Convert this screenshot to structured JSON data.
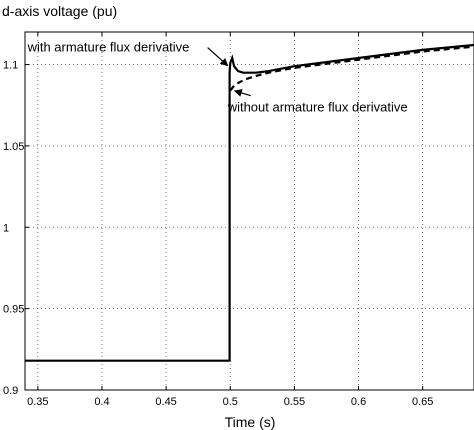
{
  "chart_data": {
    "type": "line",
    "title": "",
    "ylabel": "d-axis voltage (pu)",
    "xlabel": "Time (s)",
    "xlim": [
      0.34,
      0.69
    ],
    "ylim": [
      0.9,
      1.12
    ],
    "x_ticks": [
      0.35,
      0.4,
      0.45,
      0.5,
      0.55,
      0.6,
      0.65
    ],
    "x_tick_labels": [
      "0.35",
      "0.4",
      "0.45",
      "0.5",
      "0.55",
      "0.6",
      "0.65"
    ],
    "y_ticks": [
      0.9,
      0.95,
      1.0,
      1.05,
      1.1
    ],
    "y_tick_labels": [
      "0.9",
      "0.95",
      "1",
      "1.05",
      "1.1"
    ],
    "grid": true,
    "series": [
      {
        "name": "with armature flux derivative",
        "style": "solid",
        "color": "#000000",
        "x": [
          0.34,
          0.4995,
          0.4995,
          0.5,
          0.5015,
          0.503,
          0.506,
          0.51,
          0.515,
          0.52,
          0.53,
          0.55,
          0.6,
          0.65,
          0.69
        ],
        "y": [
          0.918,
          0.918,
          1.095,
          1.101,
          1.104,
          1.099,
          1.096,
          1.095,
          1.095,
          1.095,
          1.096,
          1.099,
          1.104,
          1.109,
          1.112
        ]
      },
      {
        "name": "without armature flux  derivative",
        "style": "dashed",
        "color": "#000000",
        "x": [
          0.5,
          0.503,
          0.507,
          0.512,
          0.52,
          0.53,
          0.55,
          0.6,
          0.65,
          0.69
        ],
        "y": [
          1.084,
          1.087,
          1.089,
          1.091,
          1.093,
          1.095,
          1.098,
          1.103,
          1.108,
          1.111
        ]
      }
    ],
    "annotations": [
      {
        "text": "with armature flux derivative",
        "x": 0.342,
        "y": 1.108,
        "arrow_to": [
          0.4995,
          1.1
        ]
      },
      {
        "text": "without armature flux  derivative",
        "x": 0.498,
        "y": 1.071,
        "arrow_to": [
          0.502,
          1.085
        ]
      }
    ]
  }
}
